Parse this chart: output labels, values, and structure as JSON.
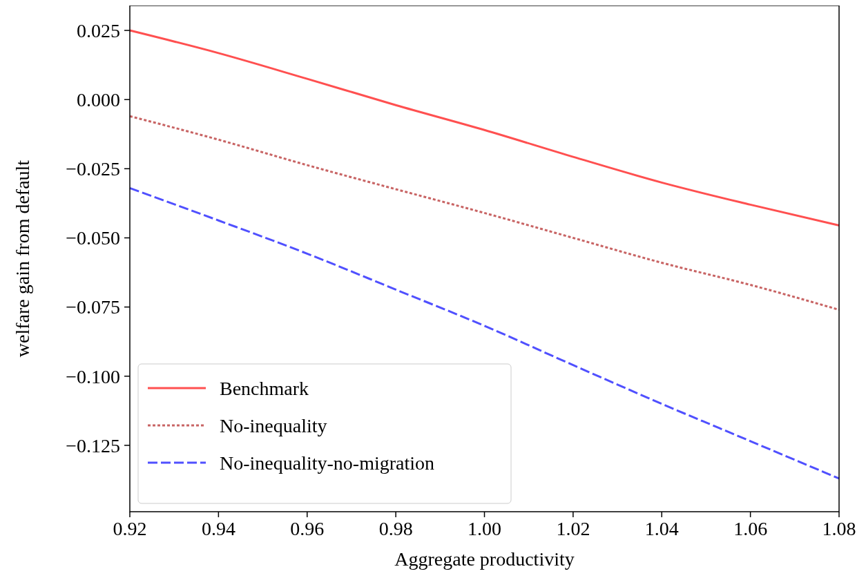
{
  "chart_data": {
    "type": "line",
    "xlabel": "Aggregate productivity",
    "ylabel": "welfare gain from default",
    "x": [
      0.92,
      0.94,
      0.96,
      0.98,
      1.0,
      1.02,
      1.04,
      1.06,
      1.08
    ],
    "xlim": [
      0.92,
      1.08
    ],
    "xticks": [
      {
        "value": 0.92,
        "label": "0.92"
      },
      {
        "value": 0.94,
        "label": "0.94"
      },
      {
        "value": 0.96,
        "label": "0.96"
      },
      {
        "value": 0.98,
        "label": "0.98"
      },
      {
        "value": 1.0,
        "label": "1.00"
      },
      {
        "value": 1.02,
        "label": "1.02"
      },
      {
        "value": 1.04,
        "label": "1.04"
      },
      {
        "value": 1.06,
        "label": "1.06"
      },
      {
        "value": 1.08,
        "label": "1.08"
      }
    ],
    "ylim": [
      -0.149,
      0.034
    ],
    "yticks": [
      {
        "value": -0.125,
        "label": "−0.125"
      },
      {
        "value": -0.1,
        "label": "−0.100"
      },
      {
        "value": -0.075,
        "label": "−0.075"
      },
      {
        "value": -0.05,
        "label": "−0.050"
      },
      {
        "value": -0.025,
        "label": "−0.025"
      },
      {
        "value": 0,
        "label": "0.000"
      },
      {
        "value": 0.025,
        "label": "0.025"
      }
    ],
    "legend": "bottom left",
    "grid": false,
    "series": [
      {
        "name": "Benchmark",
        "color": "#ff5050",
        "line_style": "solid",
        "values": [
          0.025,
          0.0168,
          0.0075,
          -0.002,
          -0.011,
          -0.0207,
          -0.03,
          -0.038,
          -0.0455
        ]
      },
      {
        "name": "No-inequality",
        "color": "#c86464",
        "line_style": "dotted",
        "values": [
          -0.006,
          -0.0145,
          -0.0237,
          -0.0324,
          -0.041,
          -0.05,
          -0.059,
          -0.067,
          -0.076
        ]
      },
      {
        "name": "No-inequality-no-migration",
        "color": "#5050ff",
        "line_style": "dashed",
        "values": [
          -0.032,
          -0.0437,
          -0.0557,
          -0.0687,
          -0.0818,
          -0.096,
          -0.11,
          -0.1235,
          -0.137
        ]
      }
    ]
  }
}
